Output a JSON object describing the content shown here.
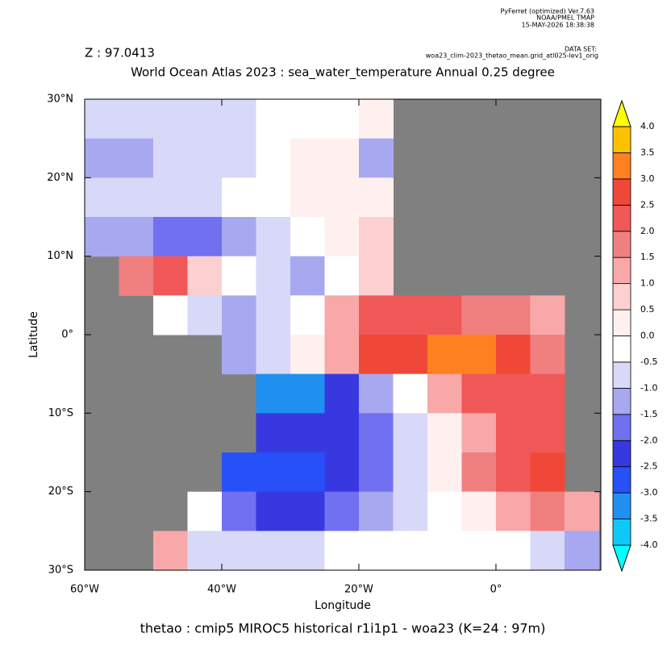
{
  "chart_data": {
    "type": "heatmap",
    "header_lines": [
      "PyFerret (optimized) Ver.7.63",
      "NOAA/PMEL TMAP",
      "15-MAY-2026 18:38:38"
    ],
    "dataset_label": "DATA SET:",
    "dataset": "woa23_clim-2023_thetao_mean.grid_atl025-lev1_orig",
    "subtitle": "Z : 97.0413",
    "title": "World Ocean Atlas 2023 : sea_water_temperature Annual  0.25 degree",
    "xlabel": "Longitude",
    "ylabel": "Latitude",
    "footer": "thetao : cmip5 MIROC5 historical r1i1p1 - woa23  (K=24 : 97m)",
    "xlim": [
      -60,
      15.3
    ],
    "ylim": [
      -30,
      30
    ],
    "xticks": [
      {
        "value": -60,
        "label": "60°W"
      },
      {
        "value": -40,
        "label": "40°W"
      },
      {
        "value": -20,
        "label": "20°W"
      },
      {
        "value": 0,
        "label": "0°"
      }
    ],
    "yticks": [
      {
        "value": 30,
        "label": "30°N"
      },
      {
        "value": 20,
        "label": "20°N"
      },
      {
        "value": 10,
        "label": "10°N"
      },
      {
        "value": 0,
        "label": "0°"
      },
      {
        "value": -10,
        "label": "10°S"
      },
      {
        "value": -20,
        "label": "20°S"
      },
      {
        "value": -30,
        "label": "30°S"
      }
    ],
    "land_color": "#808080",
    "x": [
      -57.5,
      -52.5,
      -47.5,
      -42.5,
      -37.5,
      -32.5,
      -27.5,
      -22.5,
      -17.5,
      -12.5,
      -7.5,
      -2.5,
      2.5,
      7.5,
      12.5
    ],
    "y": [
      27.5,
      22.5,
      17.5,
      12.5,
      7.5,
      2.5,
      -2.5,
      -7.5,
      -12.5,
      -17.5,
      -22.5,
      -27.5
    ],
    "values": [
      [
        -1,
        -1,
        -1,
        -1,
        -1,
        -0.5,
        -0.5,
        -0.5,
        0,
        null,
        null,
        null,
        null,
        null,
        null
      ],
      [
        -1.2,
        -1.2,
        -1,
        -1,
        -0.8,
        -0.5,
        0,
        0,
        -1.5,
        null,
        null,
        null,
        null,
        null,
        null
      ],
      [
        -1,
        -1,
        -1,
        -1,
        -0.5,
        -0.5,
        0,
        0,
        0.3,
        null,
        null,
        null,
        null,
        null,
        null
      ],
      [
        -1.5,
        -1.5,
        -2,
        -2,
        -1.5,
        -1,
        -0.5,
        0,
        0.5,
        null,
        null,
        null,
        null,
        null,
        null
      ],
      [
        null,
        1.5,
        2,
        0.5,
        -0.5,
        -1,
        -1.5,
        -0.5,
        0.5,
        null,
        null,
        null,
        null,
        null,
        null
      ],
      [
        null,
        null,
        -0.5,
        -1,
        -1.5,
        -1,
        -0.5,
        1,
        2,
        2,
        2,
        1.5,
        1.5,
        1,
        null
      ],
      [
        null,
        null,
        null,
        null,
        -1.5,
        -1,
        0,
        1,
        2.5,
        2.5,
        3,
        3,
        2.5,
        1.5,
        null
      ],
      [
        null,
        null,
        null,
        null,
        null,
        -3.5,
        -3.5,
        -2.5,
        -1.5,
        -0.5,
        1,
        2,
        2,
        2,
        null
      ],
      [
        null,
        null,
        null,
        null,
        null,
        -2.5,
        -2.5,
        -2.5,
        -2,
        -1,
        0,
        1,
        2,
        2,
        null
      ],
      [
        null,
        null,
        null,
        null,
        -3,
        -3,
        -3,
        -2.5,
        -2,
        -1,
        0,
        1.5,
        2,
        2.5,
        null
      ],
      [
        null,
        null,
        null,
        -0.5,
        -2,
        -2.5,
        -2.5,
        -2,
        -1.5,
        -1,
        -0.5,
        0,
        1,
        1.5,
        1
      ],
      [
        null,
        null,
        1,
        -1,
        -1,
        -1,
        -1,
        -0.5,
        -0.5,
        -0.5,
        -0.5,
        -0.5,
        -0.5,
        -1,
        -1.5
      ]
    ],
    "colorbar": {
      "levels": [
        {
          "value": -4,
          "label": "-4.0"
        },
        {
          "value": -3.5,
          "label": "-3.5"
        },
        {
          "value": -3,
          "label": "-3.0"
        },
        {
          "value": -2.5,
          "label": "-2.5"
        },
        {
          "value": -2,
          "label": "-2.0"
        },
        {
          "value": -1.5,
          "label": "-1.5"
        },
        {
          "value": -1,
          "label": "-1.0"
        },
        {
          "value": -0.5,
          "label": "-0.5"
        },
        {
          "value": 0,
          "label": "0.0"
        },
        {
          "value": 0.5,
          "label": "0.5"
        },
        {
          "value": 1,
          "label": "1.0"
        },
        {
          "value": 1.5,
          "label": "1.5"
        },
        {
          "value": 2,
          "label": "2.0"
        },
        {
          "value": 2.5,
          "label": "2.5"
        },
        {
          "value": 3,
          "label": "3.0"
        },
        {
          "value": 3.5,
          "label": "3.5"
        },
        {
          "value": 4,
          "label": "4.0"
        }
      ],
      "colors": [
        "#00ffff",
        "#10c8f8",
        "#2090f0",
        "#2850f8",
        "#3838e0",
        "#7070f0",
        "#a8a8f0",
        "#d8d8f8",
        "#ffffff",
        "#fff0f0",
        "#fcd0d0",
        "#f8a8a8",
        "#f08080",
        "#f05858",
        "#f04838",
        "#ff8020",
        "#ffc000",
        "#ffff00"
      ]
    }
  }
}
